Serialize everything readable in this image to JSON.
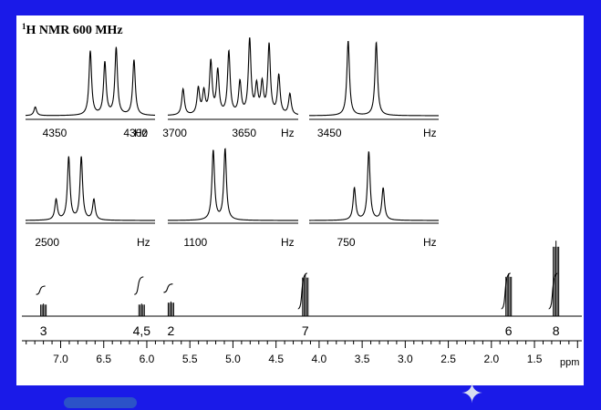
{
  "title": {
    "superscript": "1",
    "text": "H NMR 600 MHz"
  },
  "colors": {
    "background": "#1a1ae8",
    "panel": "#ffffff",
    "trace": "#000000"
  },
  "chart_data": [
    {
      "type": "line",
      "id": "inset-4350",
      "x_unit": "Hz",
      "x_ticks": [
        "4350",
        "4300"
      ],
      "x_tick_values": [
        4350,
        4300
      ],
      "xlim": [
        4368,
        4288
      ],
      "peaks": [
        {
          "x": 4362,
          "height": 0.12
        },
        {
          "x": 4328,
          "height": 0.88
        },
        {
          "x": 4319,
          "height": 0.72
        },
        {
          "x": 4312,
          "height": 0.92
        },
        {
          "x": 4301,
          "height": 0.76
        }
      ]
    },
    {
      "type": "line",
      "id": "inset-3700",
      "x_unit": "Hz",
      "x_ticks": [
        "3700",
        "3650"
      ],
      "x_tick_values": [
        3700,
        3650
      ],
      "xlim": [
        3705,
        3611
      ],
      "peaks": [
        {
          "x": 3694,
          "height": 0.35
        },
        {
          "x": 3683,
          "height": 0.35
        },
        {
          "x": 3679,
          "height": 0.3
        },
        {
          "x": 3674,
          "height": 0.7
        },
        {
          "x": 3669,
          "height": 0.58
        },
        {
          "x": 3661,
          "height": 0.84
        },
        {
          "x": 3653,
          "height": 0.43
        },
        {
          "x": 3646,
          "height": 1.0
        },
        {
          "x": 3641,
          "height": 0.37
        },
        {
          "x": 3637,
          "height": 0.4
        },
        {
          "x": 3632,
          "height": 0.93
        },
        {
          "x": 3625,
          "height": 0.52
        },
        {
          "x": 3617,
          "height": 0.28
        }
      ]
    },
    {
      "type": "line",
      "id": "inset-3450",
      "x_unit": "Hz",
      "x_ticks": [
        "3450"
      ],
      "x_tick_values": [
        3450
      ],
      "xlim": [
        3463,
        3380
      ],
      "peaks": [
        {
          "x": 3438,
          "height": 1.0
        },
        {
          "x": 3420,
          "height": 0.98
        }
      ]
    },
    {
      "type": "line",
      "id": "inset-2500",
      "x_unit": "Hz",
      "x_ticks": [
        "2500"
      ],
      "x_tick_values": [
        2500
      ],
      "xlim": [
        2512,
        2440
      ],
      "peaks": [
        {
          "x": 2495,
          "height": 0.3
        },
        {
          "x": 2488,
          "height": 0.92
        },
        {
          "x": 2481,
          "height": 0.92
        },
        {
          "x": 2474,
          "height": 0.3
        }
      ]
    },
    {
      "type": "line",
      "id": "inset-1100",
      "x_unit": "Hz",
      "x_ticks": [
        "1100"
      ],
      "x_tick_values": [
        1100
      ],
      "xlim": [
        1114,
        1048
      ],
      "peaks": [
        {
          "x": 1091,
          "height": 0.98
        },
        {
          "x": 1085,
          "height": 1.0
        }
      ]
    },
    {
      "type": "line",
      "id": "inset-750",
      "x_unit": "Hz",
      "x_ticks": [
        "750"
      ],
      "x_tick_values": [
        750
      ],
      "xlim": [
        768,
        705
      ],
      "peaks": [
        {
          "x": 746,
          "height": 0.44
        },
        {
          "x": 739,
          "height": 0.94
        },
        {
          "x": 732,
          "height": 0.44
        }
      ]
    },
    {
      "type": "line",
      "id": "main-spectrum",
      "x_unit": "ppm",
      "xlim": [
        7.45,
        0.95
      ],
      "x_ticks": [
        "7.0",
        "6.5",
        "6.0",
        "5.5",
        "5.0",
        "4.5",
        "4.0",
        "3.5",
        "3.0",
        "2.5",
        "2.0",
        "1.5"
      ],
      "x_tick_values": [
        7.0,
        6.5,
        6.0,
        5.5,
        5.0,
        4.5,
        4.0,
        3.5,
        3.0,
        2.5,
        2.0,
        1.5
      ],
      "peaks": [
        {
          "label": "3",
          "x": 7.2,
          "height": 0.3,
          "integral_height": 0.2
        },
        {
          "label": "4,5",
          "x": 6.06,
          "height": 0.3,
          "integral_height": 0.42
        },
        {
          "label": "2",
          "x": 5.72,
          "height": 0.35,
          "integral_height": 0.2
        },
        {
          "label": "7",
          "x": 4.16,
          "height": 1.0,
          "integral_height": 0.85
        },
        {
          "label": "6",
          "x": 1.8,
          "height": 1.02,
          "integral_height": 0.85
        },
        {
          "label": "8",
          "x": 1.25,
          "height": 1.8,
          "integral_height": 0.85
        }
      ],
      "x_label": "ppm"
    }
  ]
}
